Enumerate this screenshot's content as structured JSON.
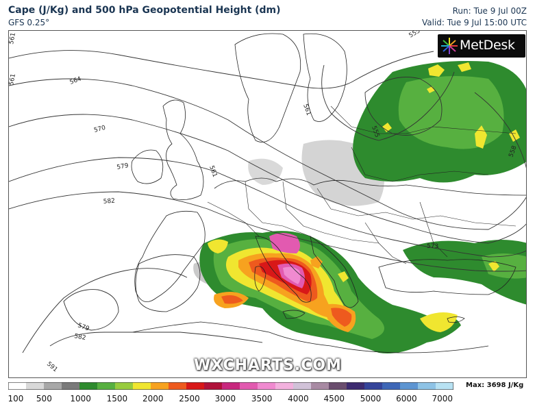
{
  "header": {
    "title": "Cape (J/Kg) and 500 hPa Geopotential Height (dm)",
    "subtitle": "GFS 0.25°",
    "run": "Run: Tue 9 Jul 00Z",
    "valid": "Valid: Tue 9 Jul 15:00 UTC"
  },
  "logo": {
    "text": "MetDesk"
  },
  "watermark": "WXCHARTS.COM",
  "colorbar": {
    "ticks": [
      "100",
      "500",
      "1000",
      "1500",
      "2000",
      "2500",
      "3000",
      "3500",
      "4000",
      "4500",
      "5000",
      "6000",
      "7000"
    ],
    "max_label": "Max: 3698 J/Kg",
    "colors": [
      "#ffffff",
      "#d9d9d9",
      "#a8a8a8",
      "#7a7a7a",
      "#2e8b2e",
      "#57b040",
      "#98cc3e",
      "#f0e630",
      "#f7a21f",
      "#ee5a1e",
      "#d81818",
      "#b0123a",
      "#c8287e",
      "#e25ab0",
      "#f08ad0",
      "#f3b1de",
      "#d1c2d8",
      "#a88aa3",
      "#6a4d6e",
      "#3d2b70",
      "#35449a",
      "#3e67b7",
      "#5d95d2",
      "#8ec3e6",
      "#b8e2f3"
    ]
  },
  "contours": {
    "labels": [
      "561",
      "561",
      "564",
      "570",
      "579",
      "582",
      "555",
      "561",
      "579",
      "582",
      "591",
      "573",
      "561",
      "555",
      "558"
    ]
  }
}
